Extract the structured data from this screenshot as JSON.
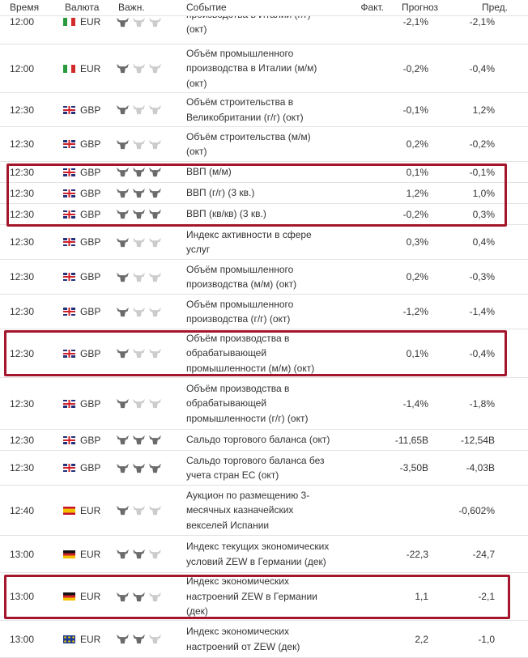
{
  "header": {
    "time": "Время",
    "currency": "Валюта",
    "importance": "Важн.",
    "event": "Событие",
    "actual": "Факт.",
    "forecast": "Прогноз",
    "previous": "Пред."
  },
  "rows": [
    {
      "time": "12:00",
      "currency": "EUR",
      "event": [
        "производства в Италии (г/г)",
        "(окт)"
      ],
      "forecast": "-2,1%",
      "previous": "-2,1%"
    },
    {
      "time": "12:00",
      "currency": "EUR",
      "event": [
        "Объём промышленного",
        "производства в Италии (м/м)",
        "(окт)"
      ],
      "forecast": "-0,2%",
      "previous": "-0,4%"
    },
    {
      "time": "12:30",
      "currency": "GBP",
      "event": [
        "Объём строительства в",
        "Великобритании (г/г) (окт)"
      ],
      "forecast": "-0,1%",
      "previous": "1,2%"
    },
    {
      "time": "12:30",
      "currency": "GBP",
      "event": [
        "Объём строительства (м/м)",
        "(окт)"
      ],
      "forecast": "0,2%",
      "previous": "-0,2%"
    },
    {
      "time": "12:30",
      "currency": "GBP",
      "event": [
        "ВВП (м/м)"
      ],
      "forecast": "0,1%",
      "previous": "-0,1%"
    },
    {
      "time": "12:30",
      "currency": "GBP",
      "event": [
        "ВВП (г/г) (3 кв.)"
      ],
      "forecast": "1,2%",
      "previous": "1,0%"
    },
    {
      "time": "12:30",
      "currency": "GBP",
      "event": [
        "ВВП (кв/кв) (3 кв.)"
      ],
      "forecast": "-0,2%",
      "previous": "0,3%"
    },
    {
      "time": "12:30",
      "currency": "GBP",
      "event": [
        "Индекс активности в сфере",
        "услуг"
      ],
      "forecast": "0,3%",
      "previous": "0,4%"
    },
    {
      "time": "12:30",
      "currency": "GBP",
      "event": [
        "Объём промышленного",
        "производства (м/м) (окт)"
      ],
      "forecast": "0,2%",
      "previous": "-0,3%"
    },
    {
      "time": "12:30",
      "currency": "GBP",
      "event": [
        "Объём промышленного",
        "производства (г/г) (окт)"
      ],
      "forecast": "-1,2%",
      "previous": "-1,4%"
    },
    {
      "time": "12:30",
      "currency": "GBP",
      "event": [
        "Объём производства в",
        "обрабатывающей",
        "промышленности (м/м) (окт)"
      ],
      "forecast": "0,1%",
      "previous": "-0,4%"
    },
    {
      "time": "12:30",
      "currency": "GBP",
      "event": [
        "Объём производства в",
        "обрабатывающей",
        "промышленности (г/г) (окт)"
      ],
      "forecast": "-1,4%",
      "previous": "-1,8%"
    },
    {
      "time": "12:30",
      "currency": "GBP",
      "event": [
        "Сальдо торгового баланса (окт)"
      ],
      "forecast": "-11,65B",
      "previous": "-12,54B"
    },
    {
      "time": "12:30",
      "currency": "GBP",
      "event": [
        "Сальдо торгового баланса без",
        "учета стран ЕС (окт)"
      ],
      "forecast": "-3,50B",
      "previous": "-4,03B"
    },
    {
      "time": "12:40",
      "currency": "EUR",
      "event": [
        "Аукцион по размещению 3-",
        "месячных казначейских",
        "векселей Испании"
      ],
      "previous": "-0,602%"
    },
    {
      "time": "13:00",
      "currency": "EUR",
      "event": [
        "Индекс текущих экономических",
        "условий ZEW в Германии (дек)"
      ],
      "forecast": "-22,3",
      "previous": "-24,7"
    },
    {
      "time": "13:00",
      "currency": "EUR",
      "event": [
        "Индекс экономических",
        "настроений ZEW в Германии",
        "(дек)"
      ],
      "forecast": "1,1",
      "previous": "-2,1"
    },
    {
      "time": "13:00",
      "currency": "EUR",
      "event": [
        "Индекс экономических",
        "настроений от ZEW (дек)"
      ],
      "forecast": "2,2",
      "previous": "-1,0"
    }
  ]
}
